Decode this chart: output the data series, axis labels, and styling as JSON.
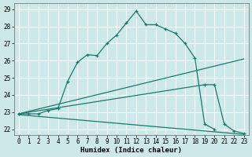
{
  "xlabel": "Humidex (Indice chaleur)",
  "bg_color": "#cce8e8",
  "grid_color": "#aed4d4",
  "line_color": "#1a7a6e",
  "xlim": [
    -0.5,
    23.5
  ],
  "ylim": [
    21.65,
    29.35
  ],
  "xtick_vals": [
    0,
    1,
    2,
    3,
    4,
    5,
    6,
    7,
    8,
    9,
    10,
    11,
    12,
    13,
    14,
    15,
    16,
    17,
    18,
    19,
    20,
    21,
    22,
    23
  ],
  "ytick_vals": [
    22,
    23,
    24,
    25,
    26,
    27,
    28,
    29
  ],
  "curve1_x": [
    0,
    1,
    2,
    3,
    4,
    5,
    6,
    7,
    8,
    9,
    10,
    11,
    12,
    13,
    14,
    15,
    16,
    17,
    18,
    19,
    20
  ],
  "curve1_y": [
    22.9,
    22.9,
    22.9,
    23.1,
    23.2,
    24.8,
    25.9,
    26.35,
    26.3,
    27.0,
    27.5,
    28.2,
    28.9,
    28.1,
    28.1,
    27.85,
    27.6,
    27.0,
    26.15,
    22.3,
    22.0
  ],
  "curve2_x": [
    0,
    23
  ],
  "curve2_y": [
    22.9,
    26.1
  ],
  "curve3_x": [
    0,
    19,
    20,
    21,
    22,
    23
  ],
  "curve3_y": [
    22.9,
    24.6,
    24.6,
    22.3,
    21.9,
    21.75
  ],
  "curve4_x": [
    0,
    1,
    2,
    3,
    4,
    5,
    6,
    7,
    8,
    9,
    10,
    11,
    12,
    13,
    14,
    15,
    16,
    17,
    18,
    19,
    20,
    21,
    22,
    23
  ],
  "curve4_y": [
    22.85,
    22.8,
    22.75,
    22.7,
    22.65,
    22.6,
    22.55,
    22.5,
    22.45,
    22.4,
    22.35,
    22.3,
    22.25,
    22.2,
    22.15,
    22.1,
    22.05,
    22.0,
    21.95,
    21.9,
    21.85,
    21.8,
    21.75,
    21.7
  ]
}
